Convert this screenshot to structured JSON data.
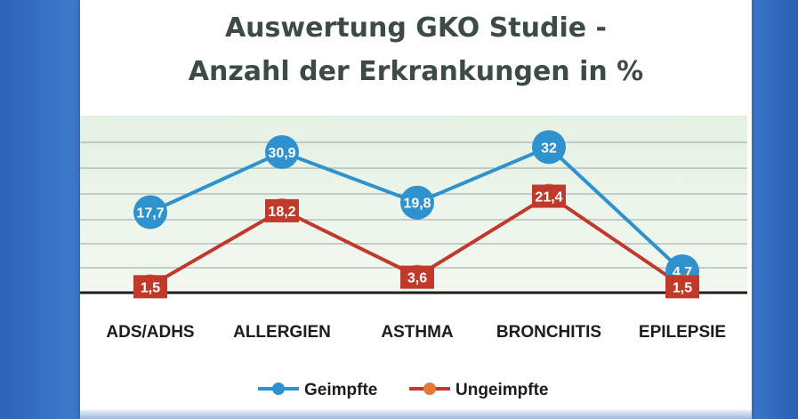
{
  "chart_data": {
    "type": "line",
    "title_line1": "Auswertung GKO Studie -",
    "title_line2": "Anzahl der Erkrankungen in %",
    "categories": [
      "ADS/ADHS",
      "ALLERGIEN",
      "ASTHMA",
      "BRONCHITIS",
      "EPILEPSIE"
    ],
    "series": [
      {
        "name": "Geimpfte",
        "color": "#2e92cf",
        "values": [
          17.7,
          30.9,
          19.8,
          32,
          4.7
        ],
        "labels": [
          "17,7",
          "30,9",
          "19,8",
          "32",
          "4,7"
        ]
      },
      {
        "name": "Ungeimpfte",
        "color": "#c0392b",
        "values": [
          1.5,
          18.2,
          3.6,
          21.4,
          1.5
        ],
        "labels": [
          "1,5",
          "18,2",
          "3,6",
          "21,4",
          "1,5"
        ]
      }
    ],
    "ylim": [
      0,
      35
    ],
    "grid": true,
    "legend_position": "bottom",
    "marker_colors": {
      "Geimpfte": "#2e92cf",
      "Ungeimpfte": "#e07b39"
    }
  }
}
